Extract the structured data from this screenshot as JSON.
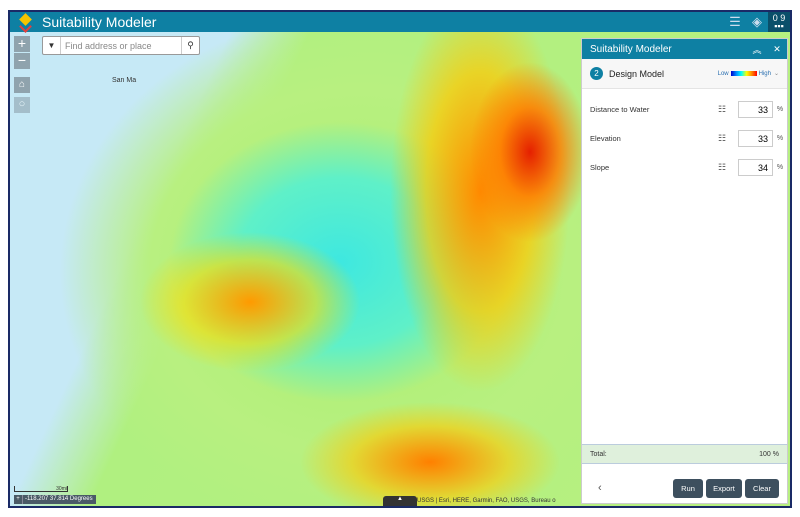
{
  "app": {
    "title": "Suitability Modeler",
    "header_icons": [
      "legend-list-icon",
      "layers-icon",
      "coordinates-widget-icon"
    ],
    "coord_widget_label": "0 9"
  },
  "map": {
    "search_placeholder": "Find address or place",
    "place_label": "San Ma",
    "scale_label": "30mi",
    "coordinates": "-118.207 37.814 Degrees",
    "attribution": "USGS | Esri, HERE, Garmin, FAO, USGS, Bureau o"
  },
  "panel": {
    "title": "Suitability Modeler",
    "step_number": "2",
    "step_name": "Design Model",
    "legend_low": "Low",
    "legend_high": "High",
    "criteria": [
      {
        "label": "Distance to Water",
        "value": "33",
        "unit": "%"
      },
      {
        "label": "Elevation",
        "value": "33",
        "unit": "%"
      },
      {
        "label": "Slope",
        "value": "34",
        "unit": "%"
      }
    ],
    "total_label": "Total:",
    "total_value": "100 %",
    "back": "‹",
    "buttons": {
      "run": "Run",
      "export": "Export",
      "clear": "Clear"
    }
  }
}
